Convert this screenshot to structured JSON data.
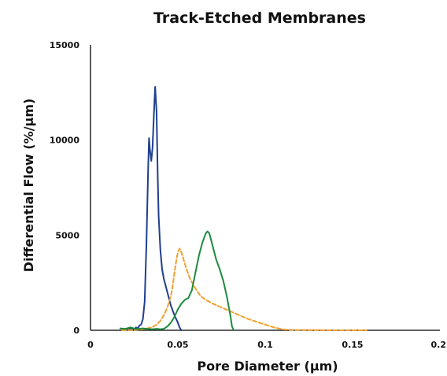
{
  "chart_data": {
    "type": "line",
    "title": "Track-Etched Membranes",
    "xlabel": "Pore Diameter (µm)",
    "ylabel": "Differential Flow  (%/µm)",
    "xlim": [
      0,
      0.2
    ],
    "ylim": [
      0,
      15000
    ],
    "x_ticks": [
      0,
      0.05,
      0.1,
      0.15,
      0.2
    ],
    "x_tick_labels": [
      "0",
      "0.05",
      "0.1",
      "0.15",
      "0.2"
    ],
    "y_ticks": [
      0,
      5000,
      10000,
      15000
    ],
    "y_tick_labels": [
      "0",
      "5000",
      "10000",
      "15000"
    ],
    "grid": false,
    "legend": "none",
    "series": [
      {
        "color": "#1f3f8f",
        "dash": "solid",
        "points": [
          [
            0.018,
            50
          ],
          [
            0.022,
            80
          ],
          [
            0.025,
            40
          ],
          [
            0.026,
            150
          ],
          [
            0.027,
            100
          ],
          [
            0.028,
            250
          ],
          [
            0.029,
            300
          ],
          [
            0.03,
            600
          ],
          [
            0.031,
            1500
          ],
          [
            0.032,
            4500
          ],
          [
            0.033,
            8500
          ],
          [
            0.0335,
            10100
          ],
          [
            0.034,
            9500
          ],
          [
            0.0348,
            8900
          ],
          [
            0.0355,
            9600
          ],
          [
            0.0365,
            11800
          ],
          [
            0.037,
            12800
          ],
          [
            0.0378,
            11500
          ],
          [
            0.0385,
            8000
          ],
          [
            0.039,
            6000
          ],
          [
            0.04,
            4200
          ],
          [
            0.041,
            3200
          ],
          [
            0.042,
            2700
          ],
          [
            0.044,
            2000
          ],
          [
            0.046,
            1300
          ],
          [
            0.048,
            800
          ],
          [
            0.05,
            400
          ],
          [
            0.051,
            150
          ],
          [
            0.052,
            0
          ]
        ]
      },
      {
        "color": "#f0a030",
        "dash": "dashed",
        "points": [
          [
            0.018,
            0
          ],
          [
            0.025,
            20
          ],
          [
            0.03,
            50
          ],
          [
            0.035,
            150
          ],
          [
            0.038,
            300
          ],
          [
            0.04,
            500
          ],
          [
            0.042,
            800
          ],
          [
            0.044,
            1200
          ],
          [
            0.046,
            1800
          ],
          [
            0.047,
            2300
          ],
          [
            0.048,
            3000
          ],
          [
            0.049,
            3600
          ],
          [
            0.05,
            4100
          ],
          [
            0.051,
            4300
          ],
          [
            0.052,
            4100
          ],
          [
            0.053,
            3800
          ],
          [
            0.055,
            3200
          ],
          [
            0.057,
            2700
          ],
          [
            0.06,
            2200
          ],
          [
            0.063,
            1800
          ],
          [
            0.066,
            1600
          ],
          [
            0.07,
            1400
          ],
          [
            0.075,
            1200
          ],
          [
            0.08,
            1000
          ],
          [
            0.085,
            800
          ],
          [
            0.09,
            600
          ],
          [
            0.095,
            450
          ],
          [
            0.1,
            300
          ],
          [
            0.105,
            150
          ],
          [
            0.11,
            50
          ],
          [
            0.115,
            20
          ],
          [
            0.125,
            10
          ],
          [
            0.14,
            0
          ],
          [
            0.158,
            0
          ]
        ]
      },
      {
        "color": "#1e8a3e",
        "dash": "solid",
        "points": [
          [
            0.017,
            100
          ],
          [
            0.02,
            80
          ],
          [
            0.023,
            150
          ],
          [
            0.026,
            60
          ],
          [
            0.03,
            100
          ],
          [
            0.035,
            50
          ],
          [
            0.038,
            80
          ],
          [
            0.04,
            50
          ],
          [
            0.042,
            80
          ],
          [
            0.044,
            200
          ],
          [
            0.046,
            400
          ],
          [
            0.048,
            700
          ],
          [
            0.05,
            1100
          ],
          [
            0.052,
            1400
          ],
          [
            0.054,
            1600
          ],
          [
            0.056,
            1700
          ],
          [
            0.058,
            2100
          ],
          [
            0.06,
            3000
          ],
          [
            0.062,
            3900
          ],
          [
            0.064,
            4600
          ],
          [
            0.066,
            5100
          ],
          [
            0.067,
            5200
          ],
          [
            0.068,
            5100
          ],
          [
            0.07,
            4400
          ],
          [
            0.072,
            3700
          ],
          [
            0.074,
            3200
          ],
          [
            0.076,
            2600
          ],
          [
            0.078,
            1800
          ],
          [
            0.08,
            800
          ],
          [
            0.081,
            200
          ],
          [
            0.082,
            0
          ]
        ]
      }
    ]
  }
}
